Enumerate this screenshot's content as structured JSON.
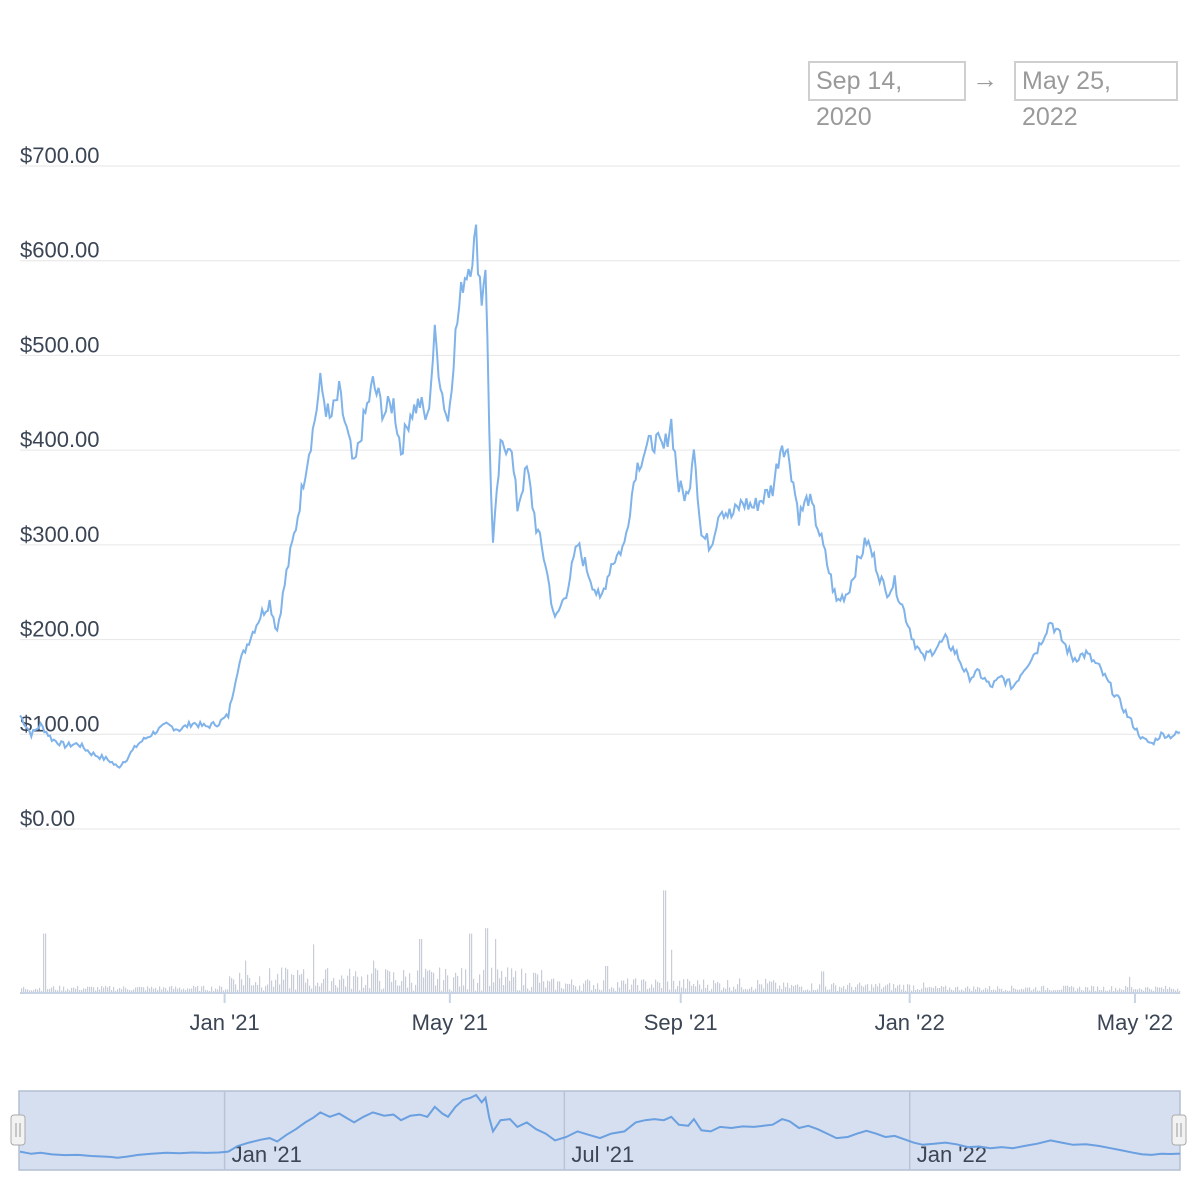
{
  "date_range": {
    "from": "Sep 14, 2020",
    "separator": "→",
    "to": "May 25, 2022"
  },
  "colors": {
    "line": "#7fb3ea",
    "volume": "#c8ccd6",
    "grid": "#e6e6e6",
    "navigator_fill": "#d6dff0",
    "navigator_line": "#6a9fe0"
  },
  "chart_data": {
    "type": "line",
    "x_start": "2020-09-14",
    "x_end": "2022-05-25",
    "ylim": [
      0,
      700
    ],
    "yticks": [
      "$700.00",
      "$600.00",
      "$500.00",
      "$400.00",
      "$300.00",
      "$200.00",
      "$100.00",
      "$0.00"
    ],
    "ytick_values": [
      700,
      600,
      500,
      400,
      300,
      200,
      100,
      0
    ],
    "xticks": [
      {
        "label": "Jan '21",
        "date": "2021-01-01"
      },
      {
        "label": "May '21",
        "date": "2021-05-01"
      },
      {
        "label": "Sep '21",
        "date": "2021-09-01"
      },
      {
        "label": "Jan '22",
        "date": "2022-01-01"
      },
      {
        "label": "May '22",
        "date": "2022-05-01"
      }
    ],
    "price": [
      [
        "2020-09-14",
        120
      ],
      [
        "2020-09-20",
        100
      ],
      [
        "2020-09-25",
        110
      ],
      [
        "2020-10-01",
        95
      ],
      [
        "2020-10-08",
        88
      ],
      [
        "2020-10-15",
        90
      ],
      [
        "2020-10-22",
        80
      ],
      [
        "2020-11-01",
        72
      ],
      [
        "2020-11-05",
        65
      ],
      [
        "2020-11-10",
        75
      ],
      [
        "2020-11-16",
        90
      ],
      [
        "2020-11-23",
        100
      ],
      [
        "2020-12-01",
        110
      ],
      [
        "2020-12-08",
        105
      ],
      [
        "2020-12-15",
        112
      ],
      [
        "2020-12-22",
        108
      ],
      [
        "2020-12-29",
        112
      ],
      [
        "2021-01-03",
        120
      ],
      [
        "2021-01-08",
        170
      ],
      [
        "2021-01-14",
        200
      ],
      [
        "2021-01-20",
        225
      ],
      [
        "2021-01-25",
        240
      ],
      [
        "2021-01-29",
        210
      ],
      [
        "2021-02-03",
        270
      ],
      [
        "2021-02-08",
        320
      ],
      [
        "2021-02-13",
        380
      ],
      [
        "2021-02-17",
        420
      ],
      [
        "2021-02-21",
        470
      ],
      [
        "2021-02-26",
        430
      ],
      [
        "2021-03-03",
        460
      ],
      [
        "2021-03-07",
        420
      ],
      [
        "2021-03-11",
        380
      ],
      [
        "2021-03-16",
        430
      ],
      [
        "2021-03-21",
        470
      ],
      [
        "2021-03-27",
        440
      ],
      [
        "2021-04-01",
        450
      ],
      [
        "2021-04-05",
        400
      ],
      [
        "2021-04-10",
        440
      ],
      [
        "2021-04-15",
        450
      ],
      [
        "2021-04-19",
        430
      ],
      [
        "2021-04-23",
        520
      ],
      [
        "2021-04-27",
        460
      ],
      [
        "2021-04-30",
        430
      ],
      [
        "2021-05-04",
        520
      ],
      [
        "2021-05-08",
        580
      ],
      [
        "2021-05-12",
        600
      ],
      [
        "2021-05-15",
        625
      ],
      [
        "2021-05-18",
        560
      ],
      [
        "2021-05-20",
        600
      ],
      [
        "2021-05-22",
        420
      ],
      [
        "2021-05-24",
        300
      ],
      [
        "2021-05-28",
        400
      ],
      [
        "2021-06-02",
        410
      ],
      [
        "2021-06-06",
        340
      ],
      [
        "2021-06-11",
        380
      ],
      [
        "2021-06-16",
        320
      ],
      [
        "2021-06-21",
        280
      ],
      [
        "2021-06-26",
        220
      ],
      [
        "2021-07-02",
        250
      ],
      [
        "2021-07-08",
        300
      ],
      [
        "2021-07-14",
        270
      ],
      [
        "2021-07-20",
        240
      ],
      [
        "2021-07-26",
        280
      ],
      [
        "2021-08-02",
        300
      ],
      [
        "2021-08-08",
        380
      ],
      [
        "2021-08-13",
        400
      ],
      [
        "2021-08-18",
        410
      ],
      [
        "2021-08-23",
        400
      ],
      [
        "2021-08-27",
        430
      ],
      [
        "2021-08-31",
        360
      ],
      [
        "2021-09-05",
        350
      ],
      [
        "2021-09-08",
        410
      ],
      [
        "2021-09-12",
        310
      ],
      [
        "2021-09-17",
        300
      ],
      [
        "2021-09-22",
        340
      ],
      [
        "2021-09-28",
        330
      ],
      [
        "2021-10-04",
        345
      ],
      [
        "2021-10-10",
        340
      ],
      [
        "2021-10-15",
        350
      ],
      [
        "2021-10-20",
        360
      ],
      [
        "2021-10-25",
        410
      ],
      [
        "2021-10-29",
        390
      ],
      [
        "2021-11-03",
        330
      ],
      [
        "2021-11-08",
        350
      ],
      [
        "2021-11-13",
        320
      ],
      [
        "2021-11-18",
        280
      ],
      [
        "2021-11-23",
        240
      ],
      [
        "2021-11-29",
        250
      ],
      [
        "2021-12-04",
        280
      ],
      [
        "2021-12-09",
        305
      ],
      [
        "2021-12-14",
        280
      ],
      [
        "2021-12-19",
        250
      ],
      [
        "2021-12-24",
        260
      ],
      [
        "2021-12-29",
        230
      ],
      [
        "2022-01-03",
        200
      ],
      [
        "2022-01-08",
        180
      ],
      [
        "2022-01-14",
        190
      ],
      [
        "2022-01-20",
        200
      ],
      [
        "2022-01-26",
        185
      ],
      [
        "2022-02-01",
        160
      ],
      [
        "2022-02-07",
        165
      ],
      [
        "2022-02-13",
        150
      ],
      [
        "2022-02-19",
        160
      ],
      [
        "2022-02-25",
        150
      ],
      [
        "2022-03-03",
        170
      ],
      [
        "2022-03-10",
        190
      ],
      [
        "2022-03-17",
        220
      ],
      [
        "2022-03-23",
        200
      ],
      [
        "2022-03-29",
        180
      ],
      [
        "2022-04-05",
        185
      ],
      [
        "2022-04-12",
        170
      ],
      [
        "2022-04-18",
        150
      ],
      [
        "2022-04-24",
        130
      ],
      [
        "2022-04-30",
        110
      ],
      [
        "2022-05-05",
        95
      ],
      [
        "2022-05-10",
        90
      ],
      [
        "2022-05-15",
        100
      ],
      [
        "2022-05-20",
        98
      ],
      [
        "2022-05-25",
        102
      ]
    ],
    "volume_spikes": [
      [
        "2020-09-27",
        0.55
      ],
      [
        "2021-01-12",
        0.3
      ],
      [
        "2021-02-17",
        0.45
      ],
      [
        "2021-03-21",
        0.3
      ],
      [
        "2021-04-15",
        0.5
      ],
      [
        "2021-05-12",
        0.55
      ],
      [
        "2021-05-20",
        0.6
      ],
      [
        "2021-05-25",
        0.5
      ],
      [
        "2021-08-23",
        0.95
      ],
      [
        "2021-08-27",
        0.4
      ],
      [
        "2021-07-23",
        0.25
      ],
      [
        "2021-11-15",
        0.2
      ],
      [
        "2022-04-28",
        0.15
      ]
    ],
    "navigator": {
      "xticks": [
        {
          "label": "Jan '21",
          "date": "2021-01-01"
        },
        {
          "label": "Jul '21",
          "date": "2021-07-01"
        },
        {
          "label": "Jan '22",
          "date": "2022-01-01"
        }
      ]
    }
  }
}
